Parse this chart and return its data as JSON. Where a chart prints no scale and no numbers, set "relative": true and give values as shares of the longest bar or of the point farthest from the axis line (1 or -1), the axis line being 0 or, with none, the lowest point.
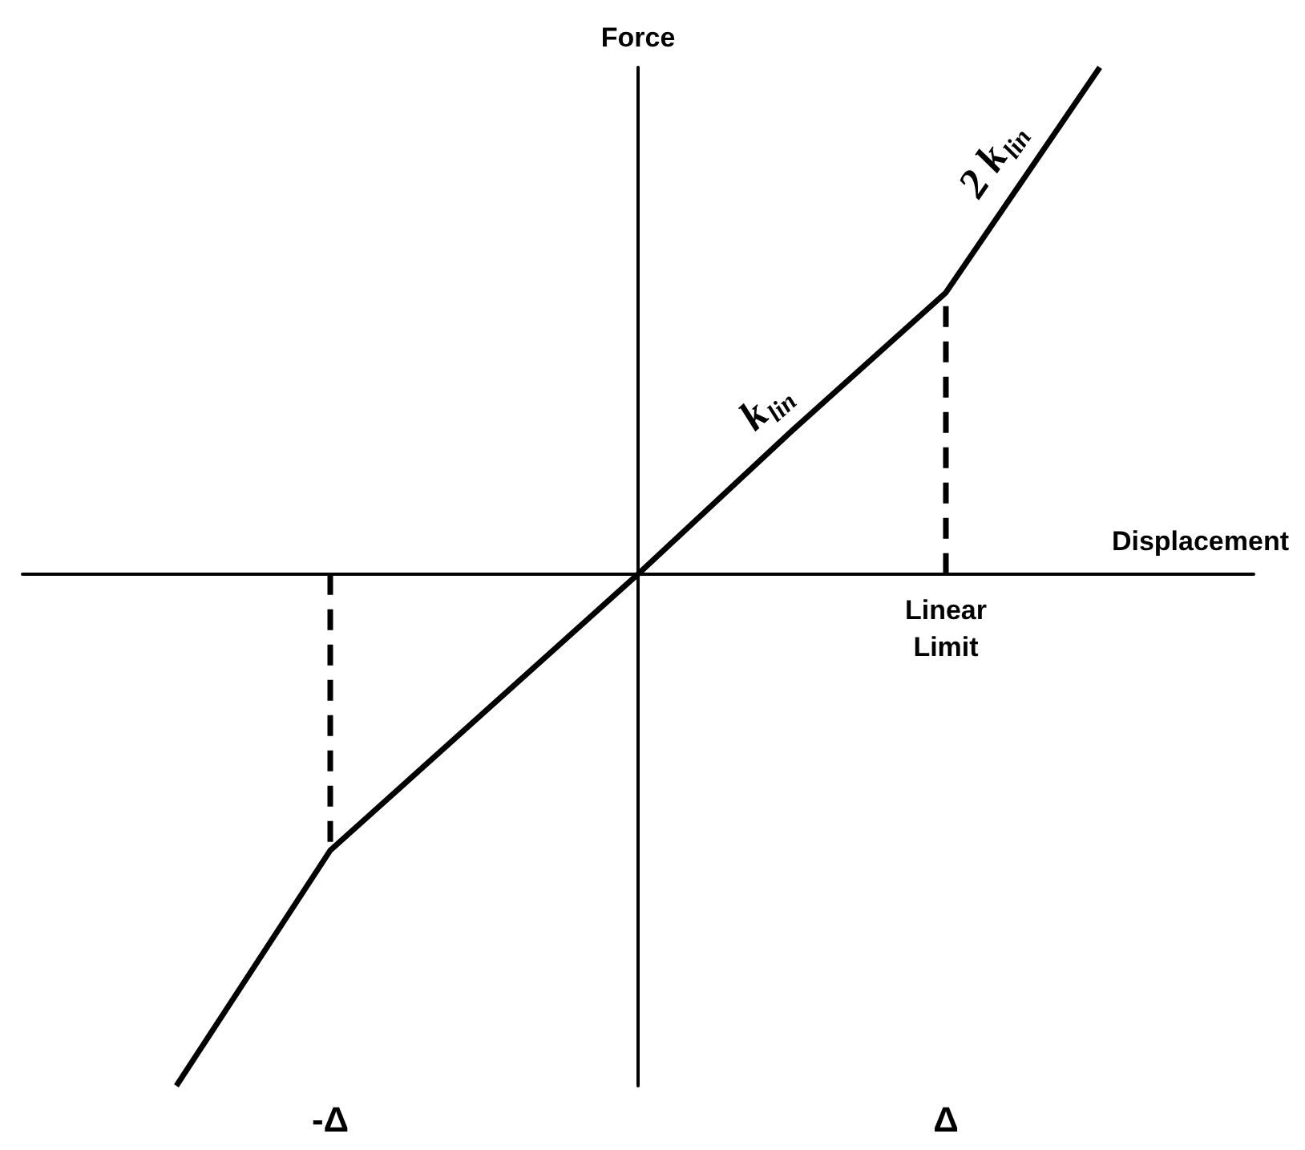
{
  "chart_data": {
    "type": "line",
    "xlabel": "Displacement",
    "ylabel": "Force",
    "relative": true,
    "marker": "none",
    "categories": [
      null,
      null,
      "-Δ",
      null,
      null,
      null,
      "Δ",
      null,
      null
    ],
    "series": [
      {
        "color": "#000000",
        "line_style": "solid",
        "values": [
          null,
          -1,
          -0.54,
          -0.27,
          0,
          0.28,
          0.55,
          0.99,
          null
        ]
      },
      {
        "color": "#000000",
        "line_style": "dashed",
        "x": [
          "Δ",
          "Δ"
        ],
        "values": [
          0,
          0.55
        ]
      },
      {
        "color": "#000000",
        "line_style": "dashed",
        "x": [
          "-Δ",
          "-Δ"
        ],
        "values": [
          0,
          -0.54
        ]
      }
    ],
    "annotations": [
      "k$_{lin}$",
      "2 k$_{lin}$",
      {
        "text": "Linear Limit",
        "x": "Δ",
        "y": 0
      }
    ]
  }
}
